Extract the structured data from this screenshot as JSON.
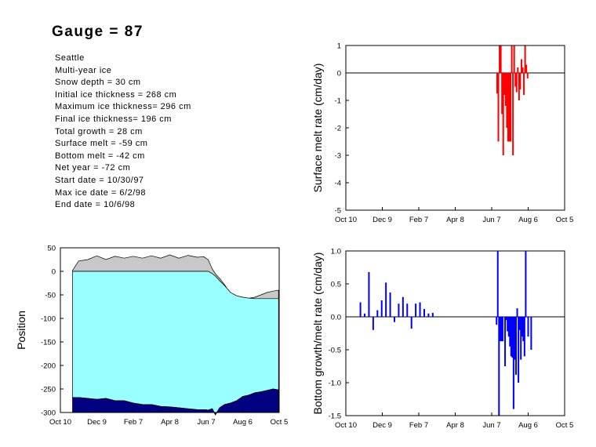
{
  "title": "Gauge = 87",
  "info": [
    "Seattle",
    "Multi-year ice",
    "Snow depth = 30 cm",
    "Initial ice thickness = 268 cm",
    "Maximum ice thickness= 296 cm",
    "Final ice thickness= 196 cm",
    "Total growth = 28 cm",
    "Surface melt = -59 cm",
    "Bottom melt = -42 cm",
    "Net year = -72 cm",
    "Start date = 10/30/97",
    "Max ice date = 6/2/98",
    "End date = 10/6/98"
  ],
  "chart_data": [
    {
      "type": "bar",
      "ylabel": "Surface melt rate (cm/day)",
      "xlabel": "",
      "color": "#ff0000",
      "xlim": [
        0,
        360
      ],
      "ylim": [
        -5,
        1
      ],
      "xticks": {
        "labels": [
          "Oct 10",
          "Dec 9",
          "Feb 7",
          "Apr 8",
          "Jun 7",
          "Aug 6",
          "Oct 5"
        ],
        "positions": [
          0,
          60,
          120,
          180,
          240,
          300,
          360
        ]
      },
      "yticks": [
        -5,
        -4,
        -3,
        -2,
        -1,
        0,
        1
      ],
      "x": [
        249,
        251,
        253,
        255,
        257,
        259,
        261,
        263,
        265,
        267,
        269,
        271,
        273,
        275,
        277,
        279,
        281,
        283,
        285,
        287,
        289,
        291,
        293,
        295,
        297,
        299,
        301,
        303,
        305
      ],
      "values": [
        -0.75,
        -2.5,
        1.0,
        1.0,
        -1.5,
        -3.0,
        -0.8,
        -1.2,
        -2.0,
        -2.5,
        -2.5,
        -2.5,
        1.0,
        -3.0,
        1.0,
        -0.5,
        -0.7,
        0.2,
        -1.0,
        -0.6,
        0.5,
        0.2,
        -0.8,
        1.0,
        0.3,
        -0.2,
        0.0,
        0.0,
        0.0
      ]
    },
    {
      "type": "area",
      "ylabel": "Position",
      "xlabel": "",
      "xlim": [
        0,
        360
      ],
      "ylim": [
        -300,
        50
      ],
      "xticks": {
        "labels": [
          "Oct 10",
          "Dec 9",
          "Feb 7",
          "Apr 8",
          "Jun 7",
          "Aug 6",
          "Oct 5"
        ],
        "positions": [
          0,
          60,
          120,
          180,
          240,
          300,
          360
        ]
      },
      "yticks": [
        -300,
        -250,
        -200,
        -150,
        -100,
        -50,
        0,
        50
      ],
      "x": [
        20,
        30,
        45,
        60,
        75,
        90,
        105,
        120,
        135,
        150,
        165,
        180,
        195,
        210,
        225,
        236,
        243,
        250,
        255,
        262,
        270,
        280,
        290,
        300,
        310,
        320,
        330,
        340,
        350,
        359
      ],
      "series": [
        {
          "role": "snow_top",
          "color": "#c8c8c8",
          "values": [
            2,
            22,
            25,
            33,
            25,
            32,
            28,
            32,
            28,
            33,
            28,
            35,
            28,
            34,
            30,
            31,
            25,
            5,
            -5,
            -15,
            -28,
            -48,
            -53,
            -55,
            -57,
            -55,
            -50,
            -45,
            -42,
            -40
          ]
        },
        {
          "role": "ice_top",
          "color": "#99ffff",
          "values": [
            0,
            0,
            0,
            0,
            0,
            0,
            0,
            0,
            0,
            0,
            0,
            0,
            0,
            0,
            0,
            0,
            0,
            -5,
            -10,
            -20,
            -30,
            -45,
            -52,
            -55,
            -57,
            -58,
            -58,
            -58,
            -58,
            -58
          ]
        },
        {
          "role": "ice_bottom",
          "color": "#000080",
          "values": [
            -268,
            -268,
            -270,
            -272,
            -270,
            -275,
            -275,
            -280,
            -283,
            -283,
            -287,
            -288,
            -290,
            -292,
            -294,
            -294,
            -295,
            -292,
            -305,
            -290,
            -283,
            -280,
            -275,
            -266,
            -263,
            -258,
            -256,
            -253,
            -250,
            -252
          ]
        }
      ]
    },
    {
      "type": "bar",
      "ylabel": "Bottom growth/melt rate (cm/day)",
      "xlabel": "",
      "color": "#0000ff",
      "xlim": [
        0,
        360
      ],
      "ylim": [
        -1.5,
        1
      ],
      "xticks": {
        "labels": [
          "Oct 10",
          "Dec 9",
          "Feb 7",
          "Apr 8",
          "Jun 7",
          "Aug 6",
          "Oct 5"
        ],
        "positions": [
          0,
          60,
          120,
          180,
          240,
          300,
          360
        ]
      },
      "yticks": [
        -1.5,
        -1.0,
        -0.5,
        0.0,
        0.5,
        1.0
      ],
      "x": [
        24,
        31,
        38,
        45,
        52,
        59,
        66,
        73,
        80,
        87,
        94,
        101,
        108,
        115,
        122,
        129,
        136,
        143,
        150,
        157,
        164,
        171,
        178,
        185,
        192,
        199,
        206,
        213,
        220,
        227,
        234,
        241,
        248,
        250,
        252,
        254,
        256,
        258,
        262,
        264,
        266,
        268,
        270,
        272,
        274,
        276,
        278,
        280,
        282,
        284,
        286,
        288,
        290,
        292,
        294,
        296,
        300,
        305,
        315,
        330,
        345,
        357
      ],
      "values": [
        0.22,
        0.05,
        0.68,
        -0.2,
        0.1,
        0.25,
        0.52,
        0.37,
        -0.08,
        0.2,
        0.3,
        0.2,
        -0.18,
        0.2,
        0.22,
        0.12,
        0.05,
        0.06,
        0.0,
        0.0,
        0.0,
        0.0,
        0.0,
        0.0,
        0.0,
        0.0,
        0.0,
        0.0,
        0.0,
        0.0,
        0.0,
        0.0,
        -0.12,
        1.0,
        -1.5,
        -0.37,
        -0.37,
        -0.37,
        -0.75,
        -0.05,
        -0.22,
        -0.3,
        -0.45,
        -0.6,
        -0.62,
        -1.4,
        -0.65,
        -0.88,
        0.13,
        -1.0,
        -0.2,
        -0.65,
        -0.3,
        -0.37,
        -0.6,
        1.0,
        -0.3,
        -0.5,
        0.0,
        0.0,
        0.0,
        0.0
      ]
    }
  ]
}
